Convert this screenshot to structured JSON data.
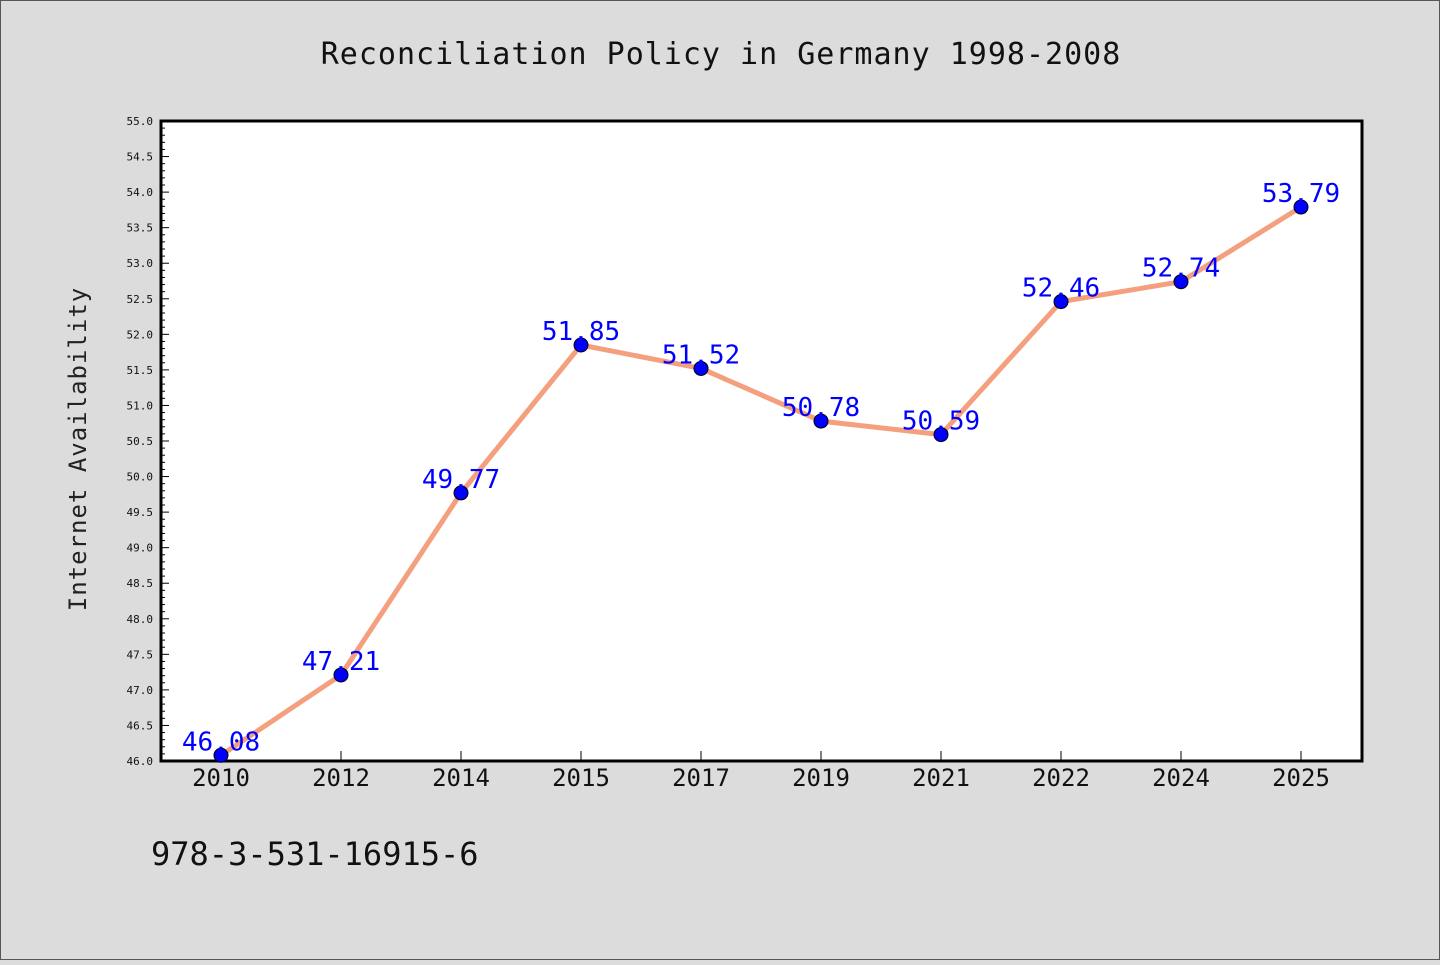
{
  "chart_data": {
    "type": "line",
    "title": "Reconciliation Policy in Germany 1998-2008",
    "xlabel": "",
    "ylabel": "Internet Availability",
    "categories": [
      "2010",
      "2012",
      "2014",
      "2015",
      "2017",
      "2019",
      "2021",
      "2022",
      "2024",
      "2025"
    ],
    "series": [
      {
        "values": [
          46.08,
          47.21,
          49.77,
          51.85,
          51.52,
          50.78,
          50.59,
          52.46,
          52.74,
          53.79
        ],
        "labels": [
          "46.08",
          "47.21",
          "49.77",
          "51.85",
          "51.52",
          "50.78",
          "50.59",
          "52.46",
          "52.74",
          "53.79"
        ],
        "line_color": "#f4a07e",
        "marker_color": "#0000ff"
      }
    ],
    "ylim": [
      46.0,
      55.0
    ],
    "yticks": [
      "46.0",
      "46.5",
      "47.0",
      "47.5",
      "48.0",
      "48.5",
      "49.0",
      "49.5",
      "50.0",
      "50.5",
      "51.0",
      "51.5",
      "52.0",
      "52.5",
      "53.0",
      "53.5",
      "54.0",
      "54.5",
      "55.0"
    ],
    "grid": false,
    "legend": "none"
  },
  "footnote": "978-3-531-16915-6",
  "colors": {
    "background": "#dcdcdc",
    "plot_background": "#ffffff",
    "axis": "#000000",
    "label_text": "#0000ff"
  }
}
